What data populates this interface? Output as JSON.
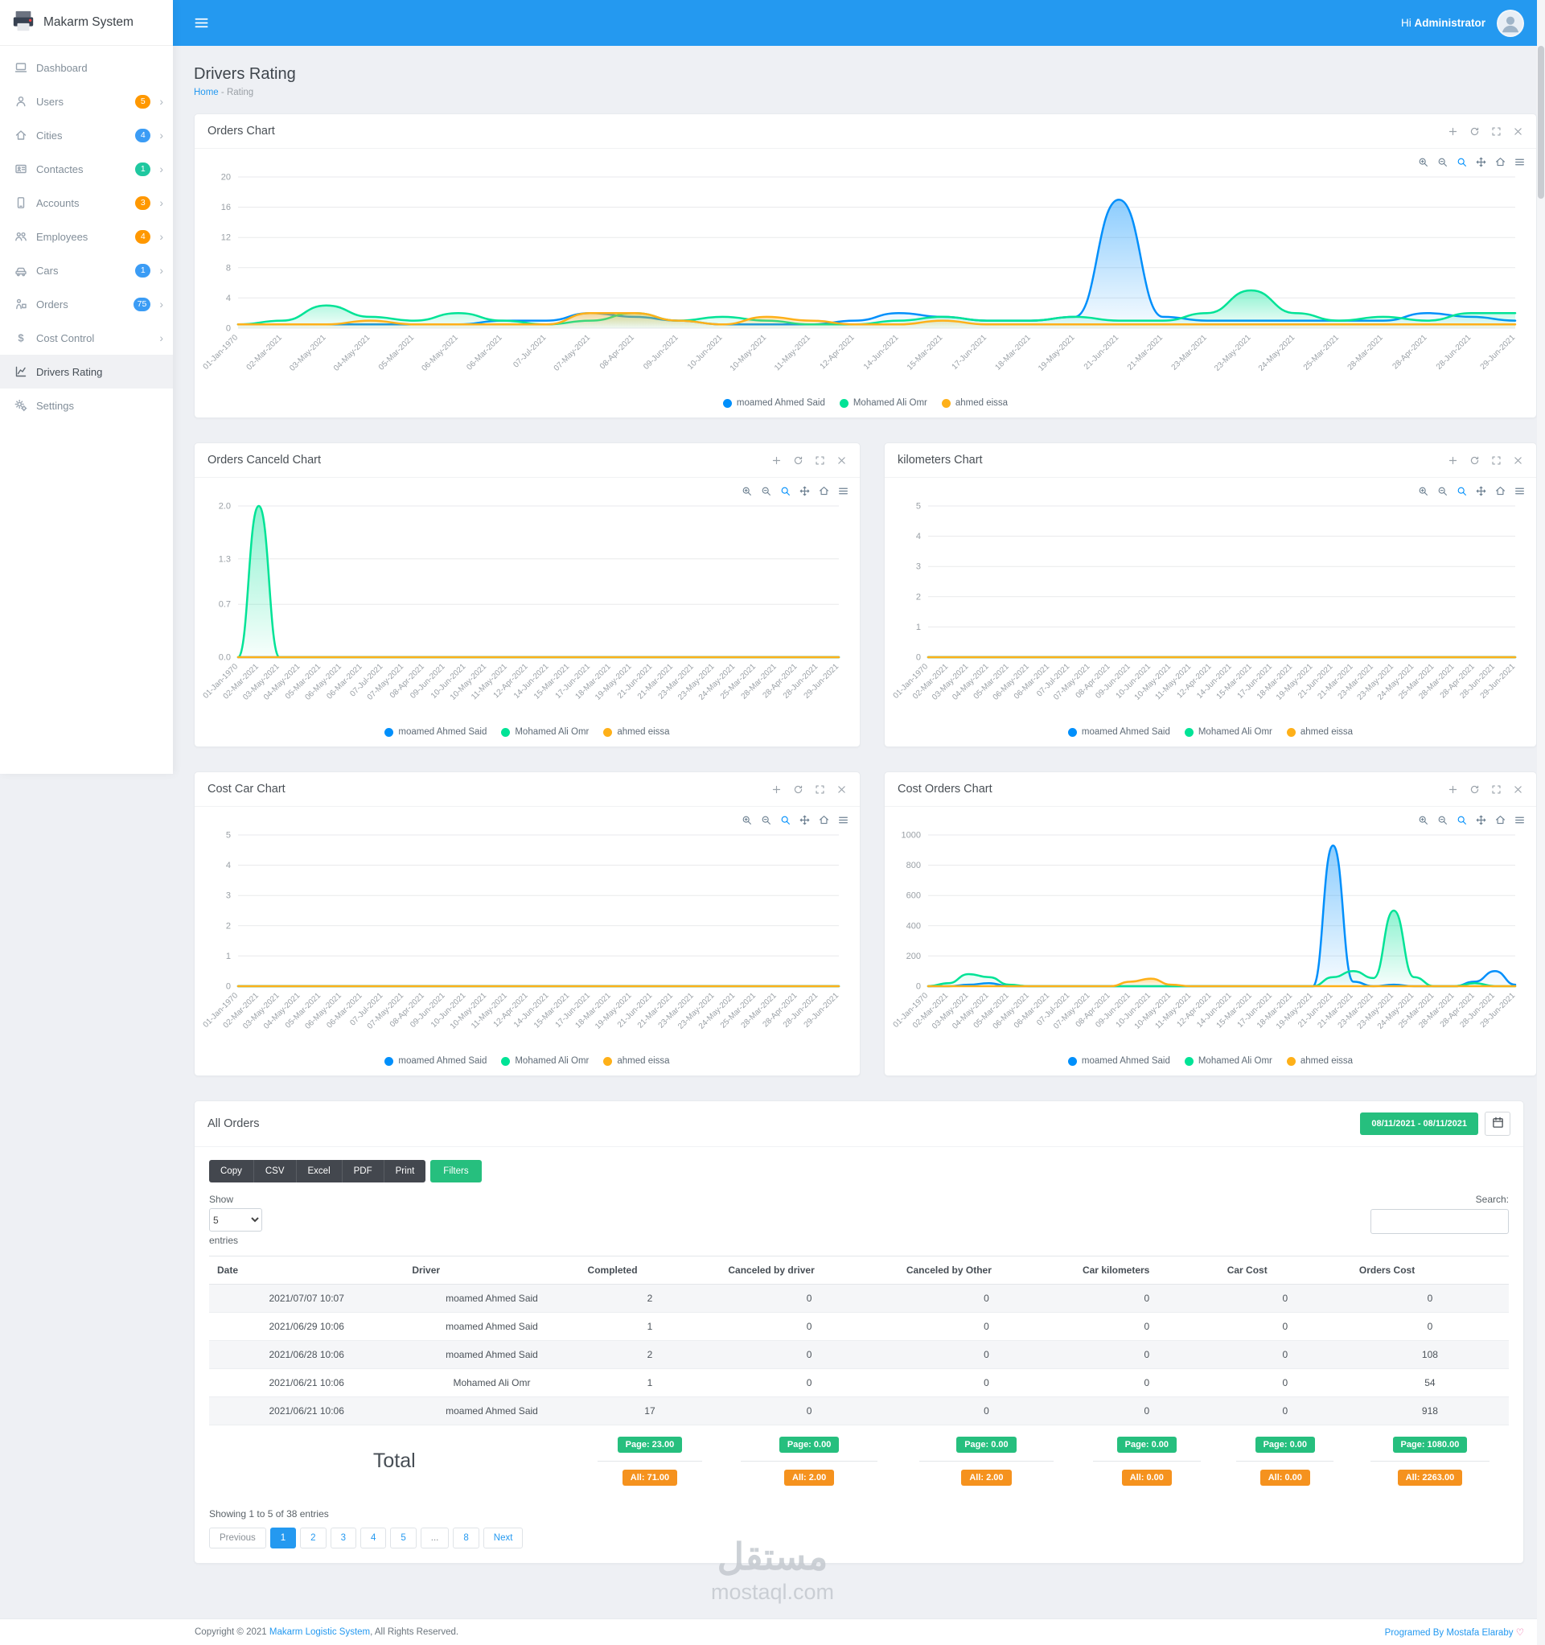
{
  "app_name": "Makarm System",
  "header": {
    "greeting": "Hi",
    "username": "Administrator"
  },
  "sidebar": {
    "items": [
      {
        "id": "dashboard",
        "label": "Dashboard",
        "icon": "dashboard-icon",
        "badge": null,
        "badge_color": null,
        "chevron": false,
        "active": false
      },
      {
        "id": "users",
        "label": "Users",
        "icon": "users-icon",
        "badge": "5",
        "badge_color": "#ff9800",
        "chevron": true,
        "active": false
      },
      {
        "id": "cities",
        "label": "Cities",
        "icon": "cities-icon",
        "badge": "4",
        "badge_color": "#3b9cf5",
        "chevron": true,
        "active": false
      },
      {
        "id": "contactes",
        "label": "Contactes",
        "icon": "contacts-icon",
        "badge": "1",
        "badge_color": "#1fc8a0",
        "chevron": true,
        "active": false
      },
      {
        "id": "accounts",
        "label": "Accounts",
        "icon": "accounts-icon",
        "badge": "3",
        "badge_color": "#ff9800",
        "chevron": true,
        "active": false
      },
      {
        "id": "employees",
        "label": "Employees",
        "icon": "employees-icon",
        "badge": "4",
        "badge_color": "#ff9800",
        "chevron": true,
        "active": false
      },
      {
        "id": "cars",
        "label": "Cars",
        "icon": "cars-icon",
        "badge": "1",
        "badge_color": "#3b9cf5",
        "chevron": true,
        "active": false
      },
      {
        "id": "orders",
        "label": "Orders",
        "icon": "orders-icon",
        "badge": "75",
        "badge_color": "#3b9cf5",
        "chevron": true,
        "active": false
      },
      {
        "id": "cost-control",
        "label": "Cost Control",
        "icon": "cost-icon",
        "badge": null,
        "badge_color": null,
        "chevron": true,
        "active": false
      },
      {
        "id": "drivers-rating",
        "label": "Drivers Rating",
        "icon": "rating-icon",
        "badge": null,
        "badge_color": null,
        "chevron": false,
        "active": true
      },
      {
        "id": "settings",
        "label": "Settings",
        "icon": "settings-icon",
        "badge": null,
        "badge_color": null,
        "chevron": false,
        "active": false
      }
    ]
  },
  "page": {
    "title": "Drivers Rating",
    "breadcrumb_home": "Home",
    "breadcrumb_sep": "-",
    "breadcrumb_current": "Rating"
  },
  "icons": {
    "card_actions": [
      "plus",
      "refresh",
      "fullscreen",
      "close"
    ],
    "chart_toolbar": [
      "zoom-in",
      "zoom-out",
      "selection-zoom",
      "pan",
      "home",
      "menu"
    ]
  },
  "chart_data": [
    {
      "id": "orders",
      "type": "area",
      "title": "Orders Chart",
      "ylim": [
        0,
        20
      ],
      "yticks": [
        "0",
        "4",
        "8",
        "12",
        "16",
        "20"
      ],
      "grid": true,
      "legend_position": "bottom",
      "categories": [
        "01-Jan-1970",
        "02-Mar-2021",
        "03-May-2021",
        "04-May-2021",
        "05-Mar-2021",
        "06-May-2021",
        "06-Mar-2021",
        "07-Jul-2021",
        "07-May-2021",
        "08-Apr-2021",
        "09-Jun-2021",
        "10-Jun-2021",
        "10-May-2021",
        "11-May-2021",
        "12-Apr-2021",
        "14-Jun-2021",
        "15-Mar-2021",
        "17-Jun-2021",
        "18-Mar-2021",
        "19-May-2021",
        "21-Jun-2021",
        "21-Mar-2021",
        "23-Mar-2021",
        "23-May-2021",
        "24-May-2021",
        "25-Mar-2021",
        "28-Mar-2021",
        "28-Apr-2021",
        "28-Jun-2021",
        "29-Jun-2021"
      ],
      "series": [
        {
          "name": "moamed Ahmed Said",
          "color": "#008FFB",
          "values": [
            0.5,
            0.5,
            0.5,
            0.5,
            0.5,
            0.5,
            1,
            1,
            2,
            1.5,
            1,
            0.5,
            0.5,
            0.5,
            1,
            2,
            1.5,
            1,
            1,
            1.5,
            17,
            1.5,
            1,
            1,
            1,
            1,
            1,
            2,
            1.5,
            1
          ]
        },
        {
          "name": "Mohamed Ali Omr",
          "color": "#00E396",
          "values": [
            0.5,
            1,
            3,
            1.5,
            1,
            2,
            1,
            0.5,
            1,
            2,
            1,
            1.5,
            1,
            0.5,
            0.5,
            1,
            1.5,
            1,
            1,
            1.5,
            1,
            1,
            2,
            5,
            2,
            1,
            1.5,
            1,
            2,
            2
          ]
        },
        {
          "name": "ahmed eissa",
          "color": "#FEB019",
          "values": [
            0.5,
            0.5,
            0.5,
            1,
            0.5,
            0.5,
            0.5,
            0.5,
            2,
            2,
            1,
            0.5,
            1.5,
            1,
            0.5,
            0.5,
            1,
            0.5,
            0.5,
            0.5,
            0.5,
            0.5,
            0.5,
            0.5,
            0.5,
            0.5,
            0.5,
            0.5,
            0.5,
            0.5
          ]
        }
      ]
    },
    {
      "id": "canceled",
      "type": "area",
      "title": "Orders Canceld Chart",
      "ylim": [
        0,
        2
      ],
      "yticks": [
        "0.0",
        "0.7",
        "1.3",
        "2.0"
      ],
      "grid": true,
      "legend_position": "bottom",
      "categories": [
        "01-Jan-1970",
        "02-Mar-2021",
        "03-May-2021",
        "04-May-2021",
        "05-Mar-2021",
        "06-May-2021",
        "06-Mar-2021",
        "07-Jul-2021",
        "07-May-2021",
        "08-Apr-2021",
        "09-Jun-2021",
        "10-Jun-2021",
        "10-May-2021",
        "11-May-2021",
        "12-Apr-2021",
        "14-Jun-2021",
        "15-Mar-2021",
        "17-Jun-2021",
        "18-Mar-2021",
        "19-May-2021",
        "21-Jun-2021",
        "21-Mar-2021",
        "23-Mar-2021",
        "23-May-2021",
        "24-May-2021",
        "25-Mar-2021",
        "28-Mar-2021",
        "28-Apr-2021",
        "28-Jun-2021",
        "29-Jun-2021"
      ],
      "series": [
        {
          "name": "moamed Ahmed Said",
          "color": "#008FFB",
          "values": [
            0,
            0,
            0,
            0,
            0,
            0,
            0,
            0,
            0,
            0,
            0,
            0,
            0,
            0,
            0,
            0,
            0,
            0,
            0,
            0,
            0,
            0,
            0,
            0,
            0,
            0,
            0,
            0,
            0,
            0
          ]
        },
        {
          "name": "Mohamed Ali Omr",
          "color": "#00E396",
          "values": [
            0,
            2,
            0,
            0,
            0,
            0,
            0,
            0,
            0,
            0,
            0,
            0,
            0,
            0,
            0,
            0,
            0,
            0,
            0,
            0,
            0,
            0,
            0,
            0,
            0,
            0,
            0,
            0,
            0,
            0
          ]
        },
        {
          "name": "ahmed eissa",
          "color": "#FEB019",
          "values": [
            0,
            0,
            0,
            0,
            0,
            0,
            0,
            0,
            0,
            0,
            0,
            0,
            0,
            0,
            0,
            0,
            0,
            0,
            0,
            0,
            0,
            0,
            0,
            0,
            0,
            0,
            0,
            0,
            0,
            0
          ]
        }
      ]
    },
    {
      "id": "kilometers",
      "type": "area",
      "title": "kilometers Chart",
      "ylim": [
        0,
        5
      ],
      "yticks": [
        "0",
        "1",
        "2",
        "3",
        "4",
        "5"
      ],
      "grid": true,
      "legend_position": "bottom",
      "categories": [
        "01-Jan-1970",
        "02-Mar-2021",
        "03-May-2021",
        "04-May-2021",
        "05-Mar-2021",
        "06-May-2021",
        "06-Mar-2021",
        "07-Jul-2021",
        "07-May-2021",
        "08-Apr-2021",
        "09-Jun-2021",
        "10-Jun-2021",
        "10-May-2021",
        "11-May-2021",
        "12-Apr-2021",
        "14-Jun-2021",
        "15-Mar-2021",
        "17-Jun-2021",
        "18-Mar-2021",
        "19-May-2021",
        "21-Jun-2021",
        "21-Mar-2021",
        "23-Mar-2021",
        "23-May-2021",
        "24-May-2021",
        "25-Mar-2021",
        "28-Mar-2021",
        "28-Apr-2021",
        "28-Jun-2021",
        "29-Jun-2021"
      ],
      "series": [
        {
          "name": "moamed Ahmed Said",
          "color": "#008FFB",
          "values": [
            0,
            0,
            0,
            0,
            0,
            0,
            0,
            0,
            0,
            0,
            0,
            0,
            0,
            0,
            0,
            0,
            0,
            0,
            0,
            0,
            0,
            0,
            0,
            0,
            0,
            0,
            0,
            0,
            0,
            0
          ]
        },
        {
          "name": "Mohamed Ali Omr",
          "color": "#00E396",
          "values": [
            0,
            0,
            0,
            0,
            0,
            0,
            0,
            0,
            0,
            0,
            0,
            0,
            0,
            0,
            0,
            0,
            0,
            0,
            0,
            0,
            0,
            0,
            0,
            0,
            0,
            0,
            0,
            0,
            0,
            0
          ]
        },
        {
          "name": "ahmed eissa",
          "color": "#FEB019",
          "values": [
            0,
            0,
            0,
            0,
            0,
            0,
            0,
            0,
            0,
            0,
            0,
            0,
            0,
            0,
            0,
            0,
            0,
            0,
            0,
            0,
            0,
            0,
            0,
            0,
            0,
            0,
            0,
            0,
            0,
            0
          ]
        }
      ]
    },
    {
      "id": "cost-car",
      "type": "area",
      "title": "Cost Car Chart",
      "ylim": [
        0,
        5
      ],
      "yticks": [
        "0",
        "1",
        "2",
        "3",
        "4",
        "5"
      ],
      "grid": true,
      "legend_position": "bottom",
      "categories": [
        "01-Jan-1970",
        "02-Mar-2021",
        "03-May-2021",
        "04-May-2021",
        "05-Mar-2021",
        "06-May-2021",
        "06-Mar-2021",
        "07-Jul-2021",
        "07-May-2021",
        "08-Apr-2021",
        "09-Jun-2021",
        "10-Jun-2021",
        "10-May-2021",
        "11-May-2021",
        "12-Apr-2021",
        "14-Jun-2021",
        "15-Mar-2021",
        "17-Jun-2021",
        "18-Mar-2021",
        "19-May-2021",
        "21-Jun-2021",
        "21-Mar-2021",
        "23-Mar-2021",
        "23-May-2021",
        "24-May-2021",
        "25-Mar-2021",
        "28-Mar-2021",
        "28-Apr-2021",
        "28-Jun-2021",
        "29-Jun-2021"
      ],
      "series": [
        {
          "name": "moamed Ahmed Said",
          "color": "#008FFB",
          "values": [
            0,
            0,
            0,
            0,
            0,
            0,
            0,
            0,
            0,
            0,
            0,
            0,
            0,
            0,
            0,
            0,
            0,
            0,
            0,
            0,
            0,
            0,
            0,
            0,
            0,
            0,
            0,
            0,
            0,
            0
          ]
        },
        {
          "name": "Mohamed Ali Omr",
          "color": "#00E396",
          "values": [
            0,
            0,
            0,
            0,
            0,
            0,
            0,
            0,
            0,
            0,
            0,
            0,
            0,
            0,
            0,
            0,
            0,
            0,
            0,
            0,
            0,
            0,
            0,
            0,
            0,
            0,
            0,
            0,
            0,
            0
          ]
        },
        {
          "name": "ahmed eissa",
          "color": "#FEB019",
          "values": [
            0,
            0,
            0,
            0,
            0,
            0,
            0,
            0,
            0,
            0,
            0,
            0,
            0,
            0,
            0,
            0,
            0,
            0,
            0,
            0,
            0,
            0,
            0,
            0,
            0,
            0,
            0,
            0,
            0,
            0
          ]
        }
      ]
    },
    {
      "id": "cost-orders",
      "type": "area",
      "title": "Cost Orders Chart",
      "ylim": [
        0,
        1000
      ],
      "yticks": [
        "0",
        "200",
        "400",
        "600",
        "800",
        "1000"
      ],
      "grid": true,
      "legend_position": "bottom",
      "categories": [
        "01-Jan-1970",
        "02-Mar-2021",
        "03-May-2021",
        "04-May-2021",
        "05-Mar-2021",
        "06-May-2021",
        "06-Mar-2021",
        "07-Jul-2021",
        "07-May-2021",
        "08-Apr-2021",
        "09-Jun-2021",
        "10-Jun-2021",
        "10-May-2021",
        "11-May-2021",
        "12-Apr-2021",
        "14-Jun-2021",
        "15-Mar-2021",
        "17-Jun-2021",
        "18-Mar-2021",
        "19-May-2021",
        "21-Jun-2021",
        "21-Mar-2021",
        "23-Mar-2021",
        "23-May-2021",
        "24-May-2021",
        "25-Mar-2021",
        "28-Mar-2021",
        "28-Apr-2021",
        "28-Jun-2021",
        "29-Jun-2021"
      ],
      "series": [
        {
          "name": "moamed Ahmed Said",
          "color": "#008FFB",
          "values": [
            0,
            0,
            10,
            20,
            0,
            0,
            0,
            0,
            0,
            0,
            0,
            0,
            0,
            0,
            0,
            0,
            0,
            0,
            0,
            0,
            930,
            30,
            0,
            10,
            0,
            0,
            0,
            30,
            100,
            10
          ]
        },
        {
          "name": "Mohamed Ali Omr",
          "color": "#00E396",
          "values": [
            0,
            20,
            80,
            60,
            10,
            0,
            0,
            0,
            0,
            0,
            0,
            0,
            0,
            0,
            0,
            0,
            0,
            0,
            0,
            0,
            60,
            100,
            54,
            500,
            60,
            0,
            0,
            20,
            0,
            0
          ]
        },
        {
          "name": "ahmed eissa",
          "color": "#FEB019",
          "values": [
            0,
            0,
            0,
            0,
            0,
            0,
            0,
            0,
            0,
            0,
            30,
            50,
            10,
            0,
            0,
            0,
            0,
            0,
            0,
            0,
            0,
            0,
            0,
            0,
            0,
            0,
            0,
            0,
            0,
            0
          ]
        }
      ]
    }
  ],
  "orders_panel": {
    "title": "All Orders",
    "date_range": "08/11/2021 - 08/11/2021",
    "export_buttons": [
      "Copy",
      "CSV",
      "Excel",
      "PDF",
      "Print"
    ],
    "filters_label": "Filters",
    "show_label": "Show",
    "show_value": "5",
    "show_options": [
      "5"
    ],
    "entries_label": "entries",
    "search_label": "Search:",
    "search_value": "",
    "columns": [
      "Date",
      "Driver",
      "Completed",
      "Canceled by driver",
      "Canceled by Other",
      "Car kilometers",
      "Car Cost",
      "Orders Cost"
    ],
    "rows": [
      [
        "2021/07/07 10:07",
        "moamed Ahmed Said",
        "2",
        "0",
        "0",
        "0",
        "0",
        "0"
      ],
      [
        "2021/06/29 10:06",
        "moamed Ahmed Said",
        "1",
        "0",
        "0",
        "0",
        "0",
        "0"
      ],
      [
        "2021/06/28 10:06",
        "moamed Ahmed Said",
        "2",
        "0",
        "0",
        "0",
        "0",
        "108"
      ],
      [
        "2021/06/21 10:06",
        "Mohamed Ali Omr",
        "1",
        "0",
        "0",
        "0",
        "0",
        "54"
      ],
      [
        "2021/06/21 10:06",
        "moamed Ahmed Said",
        "17",
        "0",
        "0",
        "0",
        "0",
        "918"
      ]
    ],
    "total_label": "Total",
    "totals": [
      {
        "page": "Page: 23.00",
        "all": "All: 71.00"
      },
      {
        "page": "Page: 0.00",
        "all": "All: 2.00"
      },
      {
        "page": "Page: 0.00",
        "all": "All: 2.00"
      },
      {
        "page": "Page: 0.00",
        "all": "All: 0.00"
      },
      {
        "page": "Page: 0.00",
        "all": "All: 0.00"
      },
      {
        "page": "Page: 1080.00",
        "all": "All: 2263.00"
      }
    ],
    "showing": "Showing 1 to 5 of 38 entries",
    "pagination": {
      "items": [
        "Previous",
        "1",
        "2",
        "3",
        "4",
        "5",
        "...",
        "8",
        "Next"
      ],
      "active": "1",
      "muted": [
        "Previous",
        "..."
      ]
    }
  },
  "footer": {
    "copyright_prefix": "Copyright © 2021 ",
    "copyright_link": "Makarm Logistic System",
    "copyright_suffix": ", All Rights Reserved.",
    "credit_prefix": "Programed By ",
    "credit_name": "Mostafa Elaraby",
    "credit_heart": "♡"
  },
  "watermark": {
    "arabic": "مستقل",
    "domain": "mostaql.com"
  }
}
